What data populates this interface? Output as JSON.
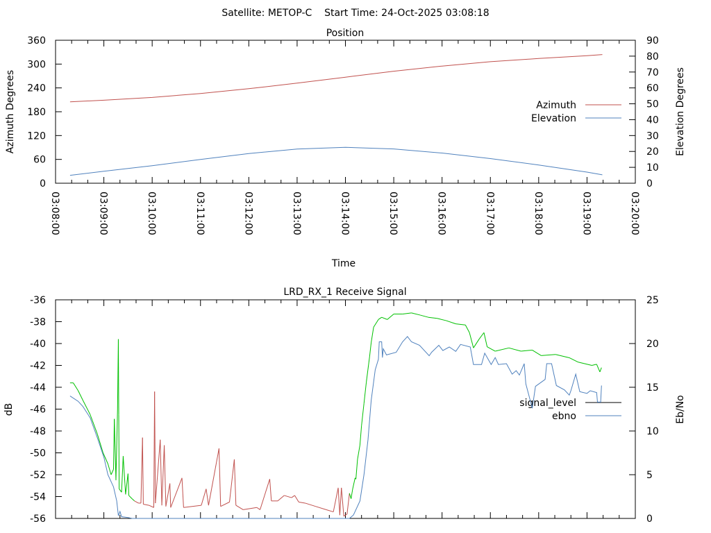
{
  "header": {
    "title": "Satellite: METOP-C    Start Time: 24-Oct-2025 03:08:18"
  },
  "chart_data": [
    {
      "type": "line",
      "title": "Position",
      "xlabel": "Time",
      "ylabel": "Azimuth Degrees",
      "y2label": "Elevation Degrees",
      "x_unit": "seconds after 03:08:00",
      "xlim": [
        0,
        720
      ],
      "ylim": [
        0,
        360
      ],
      "y2lim": [
        0,
        90
      ],
      "x_ticks": [
        "03:08:00",
        "03:09:00",
        "03:10:00",
        "03:11:00",
        "03:12:00",
        "03:13:00",
        "03:14:00",
        "03:15:00",
        "03:16:00",
        "03:17:00",
        "03:18:00",
        "03:19:00",
        "03:20:00"
      ],
      "y_ticks": [
        "0",
        "60",
        "120",
        "180",
        "240",
        "300",
        "360"
      ],
      "y2_ticks": [
        "0",
        "10",
        "20",
        "30",
        "40",
        "50",
        "60",
        "70",
        "80",
        "90"
      ],
      "legend_position": "right",
      "series": [
        {
          "name": "Azimuth",
          "axis": "y",
          "color": "#c0504d",
          "points": [
            [
              18,
              205
            ],
            [
              60,
              209
            ],
            [
              120,
              216
            ],
            [
              180,
              226
            ],
            [
              240,
              238
            ],
            [
              300,
              252
            ],
            [
              360,
              267
            ],
            [
              420,
              282
            ],
            [
              480,
              295
            ],
            [
              540,
              306
            ],
            [
              600,
              314
            ],
            [
              660,
              321
            ],
            [
              679,
              324
            ]
          ]
        },
        {
          "name": "Elevation",
          "axis": "y2",
          "color": "#4f81bd",
          "points": [
            [
              18,
              5
            ],
            [
              60,
              7.5
            ],
            [
              120,
              11
            ],
            [
              180,
              15
            ],
            [
              240,
              18.7
            ],
            [
              300,
              21.5
            ],
            [
              360,
              22.6
            ],
            [
              420,
              21.6
            ],
            [
              480,
              19
            ],
            [
              540,
              15.5
            ],
            [
              600,
              11.5
            ],
            [
              660,
              7
            ],
            [
              679,
              5.3
            ]
          ]
        }
      ]
    },
    {
      "type": "line",
      "title": "LRD_RX_1 Receive Signal",
      "ylabel": "dB",
      "y2label": "Eb/No",
      "x_unit": "seconds after 03:08:00",
      "xlim": [
        0,
        720
      ],
      "ylim": [
        -56,
        -36
      ],
      "y2lim": [
        0,
        25
      ],
      "y_ticks": [
        "-56",
        "-54",
        "-52",
        "-50",
        "-48",
        "-46",
        "-44",
        "-42",
        "-40",
        "-38",
        "-36"
      ],
      "y2_ticks": [
        "0",
        "5",
        "10",
        "15",
        "20",
        "25"
      ],
      "legend_position": "right",
      "locked_color": "#00c000",
      "unlocked_color": "#c0504d",
      "locked_intervals": [
        [
          18,
          98
        ],
        [
          366,
          680
        ]
      ],
      "series": [
        {
          "name": "signal_level",
          "axis": "y",
          "legend_color": "#000000",
          "points": [
            [
              18,
              -43.6
            ],
            [
              22,
              -43.6
            ],
            [
              28,
              -44.3
            ],
            [
              34,
              -45.2
            ],
            [
              43,
              -46.5
            ],
            [
              52,
              -48.3
            ],
            [
              59,
              -50
            ],
            [
              65,
              -51
            ],
            [
              69,
              -52
            ],
            [
              72,
              -51.5
            ],
            [
              73,
              -46.9
            ],
            [
              75,
              -52.5
            ],
            [
              77,
              -46
            ],
            [
              78,
              -39.6
            ],
            [
              78.5,
              -46.5
            ],
            [
              79,
              -53.3
            ],
            [
              82,
              -53.6
            ],
            [
              84,
              -50.3
            ],
            [
              87,
              -53.8
            ],
            [
              90,
              -51.9
            ],
            [
              91,
              -53.9
            ],
            [
              95,
              -54.2
            ],
            [
              98,
              -54.4
            ],
            [
              103,
              -54.6
            ],
            [
              106,
              -54.6
            ],
            [
              108,
              -48.6
            ],
            [
              109,
              -54.7
            ],
            [
              116,
              -54.8
            ],
            [
              122,
              -55
            ],
            [
              123,
              -44.4
            ],
            [
              124,
              -54.6
            ],
            [
              130,
              -48.8
            ],
            [
              132,
              -54.8
            ],
            [
              135,
              -49.3
            ],
            [
              137,
              -54.9
            ],
            [
              142,
              -52.8
            ],
            [
              143,
              -55
            ],
            [
              157,
              -52.3
            ],
            [
              159,
              -55
            ],
            [
              181,
              -54.8
            ],
            [
              187,
              -53.3
            ],
            [
              190,
              -54.8
            ],
            [
              203,
              -49.6
            ],
            [
              205,
              -54.9
            ],
            [
              216,
              -54.5
            ],
            [
              222,
              -50.6
            ],
            [
              224,
              -54.8
            ],
            [
              233,
              -55.2
            ],
            [
              250,
              -55
            ],
            [
              254,
              -55.2
            ],
            [
              266,
              -52.4
            ],
            [
              268,
              -54.4
            ],
            [
              276,
              -54.4
            ],
            [
              284,
              -53.9
            ],
            [
              293,
              -54.1
            ],
            [
              297,
              -53.9
            ],
            [
              302,
              -54.5
            ],
            [
              310,
              -54.6
            ],
            [
              323,
              -54.9
            ],
            [
              336,
              -55.2
            ],
            [
              345,
              -55.4
            ],
            [
              351,
              -53.2
            ],
            [
              353,
              -55.7
            ],
            [
              355,
              -53.2
            ],
            [
              358,
              -55.8
            ],
            [
              362,
              -55.6
            ],
            [
              365,
              -53.7
            ],
            [
              367,
              -54.2
            ],
            [
              369,
              -53.3
            ],
            [
              372,
              -52.3
            ],
            [
              373,
              -52.4
            ],
            [
              375,
              -50.6
            ],
            [
              378,
              -49.3
            ],
            [
              380,
              -47.5
            ],
            [
              383,
              -45.5
            ],
            [
              386,
              -43.5
            ],
            [
              390,
              -41.2
            ],
            [
              392,
              -39.9
            ],
            [
              395,
              -38.5
            ],
            [
              401,
              -37.8
            ],
            [
              405,
              -37.6
            ],
            [
              412,
              -37.8
            ],
            [
              420,
              -37.3
            ],
            [
              431,
              -37.3
            ],
            [
              442,
              -37.2
            ],
            [
              453,
              -37.4
            ],
            [
              463,
              -37.6
            ],
            [
              474,
              -37.7
            ],
            [
              485,
              -37.9
            ],
            [
              497,
              -38.2
            ],
            [
              509,
              -38.3
            ],
            [
              514,
              -39
            ],
            [
              519,
              -40.4
            ],
            [
              526,
              -39.6
            ],
            [
              532,
              -39
            ],
            [
              536,
              -40.3
            ],
            [
              546,
              -40.7
            ],
            [
              563,
              -40.4
            ],
            [
              578,
              -40.7
            ],
            [
              592,
              -40.6
            ],
            [
              603,
              -41.1
            ],
            [
              621,
              -41
            ],
            [
              638,
              -41.3
            ],
            [
              649,
              -41.7
            ],
            [
              666,
              -42
            ],
            [
              672,
              -41.9
            ],
            [
              676,
              -42.6
            ],
            [
              678,
              -42.2
            ]
          ]
        },
        {
          "name": "ebno",
          "axis": "y2",
          "color": "#4f81bd",
          "points": [
            [
              18,
              14
            ],
            [
              28,
              13.4
            ],
            [
              34,
              12.8
            ],
            [
              43,
              11.5
            ],
            [
              52,
              9.2
            ],
            [
              60,
              7
            ],
            [
              65,
              5
            ],
            [
              72,
              3.6
            ],
            [
              76,
              2
            ],
            [
              78,
              0.3
            ],
            [
              80,
              0.8
            ],
            [
              82,
              0.2
            ],
            [
              90,
              0.1
            ],
            [
              95,
              0
            ],
            [
              365,
              0
            ],
            [
              370,
              0.4
            ],
            [
              378,
              2
            ],
            [
              383,
              5
            ],
            [
              388,
              9
            ],
            [
              392,
              13.5
            ],
            [
              397,
              17
            ],
            [
              401,
              18.2
            ],
            [
              402,
              20.2
            ],
            [
              405,
              20.2
            ],
            [
              406,
              18.4
            ],
            [
              407,
              19.4
            ],
            [
              411,
              18.7
            ],
            [
              423,
              19
            ],
            [
              431,
              20.2
            ],
            [
              437,
              20.8
            ],
            [
              442,
              20.2
            ],
            [
              452,
              19.8
            ],
            [
              464,
              18.6
            ],
            [
              467,
              19
            ],
            [
              476,
              19.8
            ],
            [
              481,
              19.2
            ],
            [
              489,
              19.6
            ],
            [
              497,
              19.1
            ],
            [
              503,
              19.9
            ],
            [
              515,
              19.6
            ],
            [
              519,
              17.6
            ],
            [
              529,
              17.6
            ],
            [
              533,
              18.9
            ],
            [
              541,
              17.6
            ],
            [
              546,
              18.4
            ],
            [
              550,
              17.6
            ],
            [
              560,
              17.7
            ],
            [
              567,
              16.5
            ],
            [
              572,
              16.9
            ],
            [
              576,
              16.4
            ],
            [
              582,
              17.7
            ],
            [
              584,
              15.4
            ],
            [
              592,
              12.6
            ],
            [
              596,
              15.1
            ],
            [
              608,
              15.9
            ],
            [
              610,
              17.7
            ],
            [
              616,
              17.7
            ],
            [
              622,
              15.2
            ],
            [
              632,
              14.7
            ],
            [
              638,
              14.1
            ],
            [
              640,
              14.6
            ],
            [
              646,
              16.5
            ],
            [
              651,
              14.5
            ],
            [
              660,
              14.3
            ],
            [
              664,
              14.6
            ],
            [
              672,
              14.4
            ],
            [
              673,
              13.3
            ],
            [
              677,
              13.3
            ],
            [
              678,
              15.2
            ]
          ]
        }
      ]
    }
  ]
}
